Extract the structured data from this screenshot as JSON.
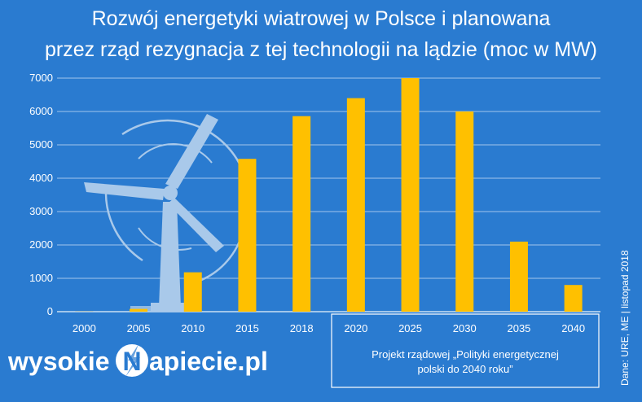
{
  "title_lines": [
    "Rozwój energetyki wiatrowej w Polsce i planowana",
    "przez rząd rezygnacja z tej technologii na lądzie (moc w MW)"
  ],
  "note_lines": [
    "Projekt rządowej „Polityki energetycznej",
    "polski do 2040 roku”"
  ],
  "source": "Dane: URE, ME  |  listopad 2018",
  "logo": {
    "left": "wysokie",
    "letter": "N",
    "right": "apiecie.pl"
  },
  "colors": {
    "background": "#2a7bd0",
    "bar": "#ffc000",
    "grid": "#ffffff",
    "turbine": "#a9c9ea"
  },
  "chart_data": {
    "type": "bar",
    "title": "Rozwój energetyki wiatrowej w Polsce i planowana przez rząd rezygnacja z tej technologii na lądzie (moc w MW)",
    "categories": [
      "2000",
      "2005",
      "2010",
      "2015",
      "2018",
      "2020",
      "2025",
      "2030",
      "2035",
      "2040"
    ],
    "values": [
      4,
      83,
      1180,
      4580,
      5860,
      6400,
      7000,
      6000,
      2100,
      800
    ],
    "yticks": [
      0,
      1000,
      2000,
      3000,
      4000,
      5000,
      6000,
      7000
    ],
    "ylim": [
      0,
      7000
    ],
    "xlabel": "",
    "ylabel": "",
    "grid": true,
    "legend": "none"
  }
}
